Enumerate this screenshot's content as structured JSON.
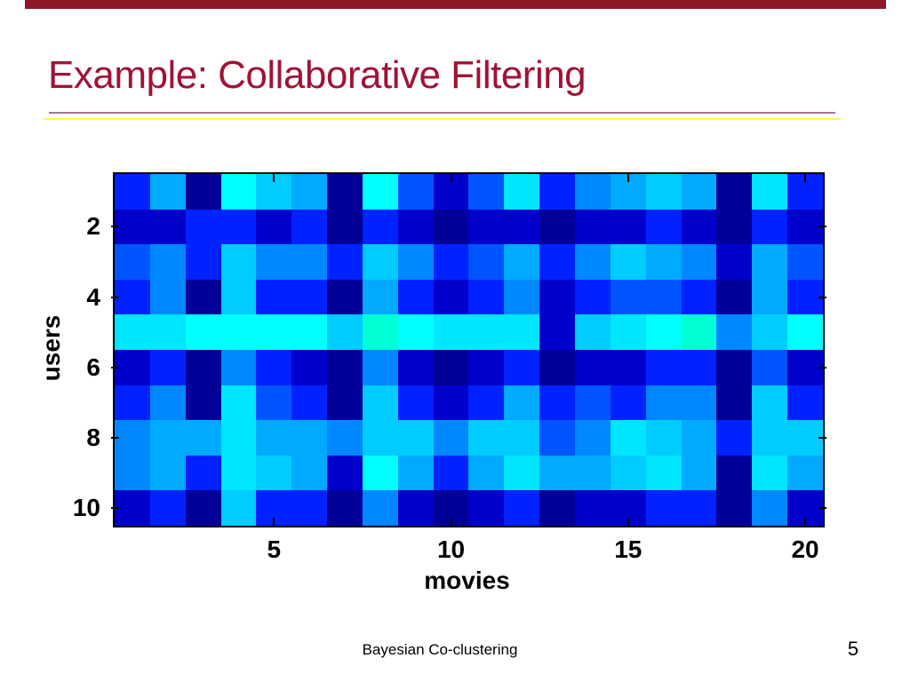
{
  "slide": {
    "title": "Example: Collaborative Filtering",
    "footer": "Bayesian Co-clustering",
    "page_number": "5",
    "colors": {
      "top_bar": "#8E1728",
      "title": "#A01335",
      "rule_top": "#A0788E",
      "rule_bottom": "#FFFF33"
    }
  },
  "chart_data": {
    "type": "heatmap",
    "title": "",
    "xlabel": "movies",
    "ylabel": "users",
    "n_cols": 20,
    "n_rows": 10,
    "x_ticks": [
      5,
      10,
      15,
      20
    ],
    "y_ticks": [
      2,
      4,
      6,
      8,
      10
    ],
    "x_range": [
      1,
      20
    ],
    "y_range": [
      1,
      10
    ],
    "legend": "none",
    "grid_lines": "off",
    "value_scale_note": "letters map to palette colors, dark navy = low rating, cyan/aqua = high rating",
    "palette": {
      "A": "#000099",
      "B": "#0000CC",
      "C": "#0022FF",
      "D": "#0055FF",
      "E": "#0088FF",
      "F": "#00AAFF",
      "G": "#00CCFF",
      "H": "#00E6FF",
      "I": "#00FFFF",
      "J": "#00FFD5"
    },
    "grid": [
      "CFAIGFAIDBDHCEFGFAHC",
      "BBCCBCACBABBABBCBACB",
      "DECGEECGECDFCEGFEBFD",
      "CEAGCCAFCBCEBCDDCAFC",
      "HHIIIIGJIHHHBGHIJEGI",
      "BCAECBAEBABCABBCCADB",
      "CEAHDCAGCBCFCDCEEAGC",
      "EFFHFFEGGEGGDEHGFCGG",
      "EFCHGFBIFCFHFFGHFAHF",
      "BCAGCCAEBABCABBCCAEB"
    ]
  }
}
